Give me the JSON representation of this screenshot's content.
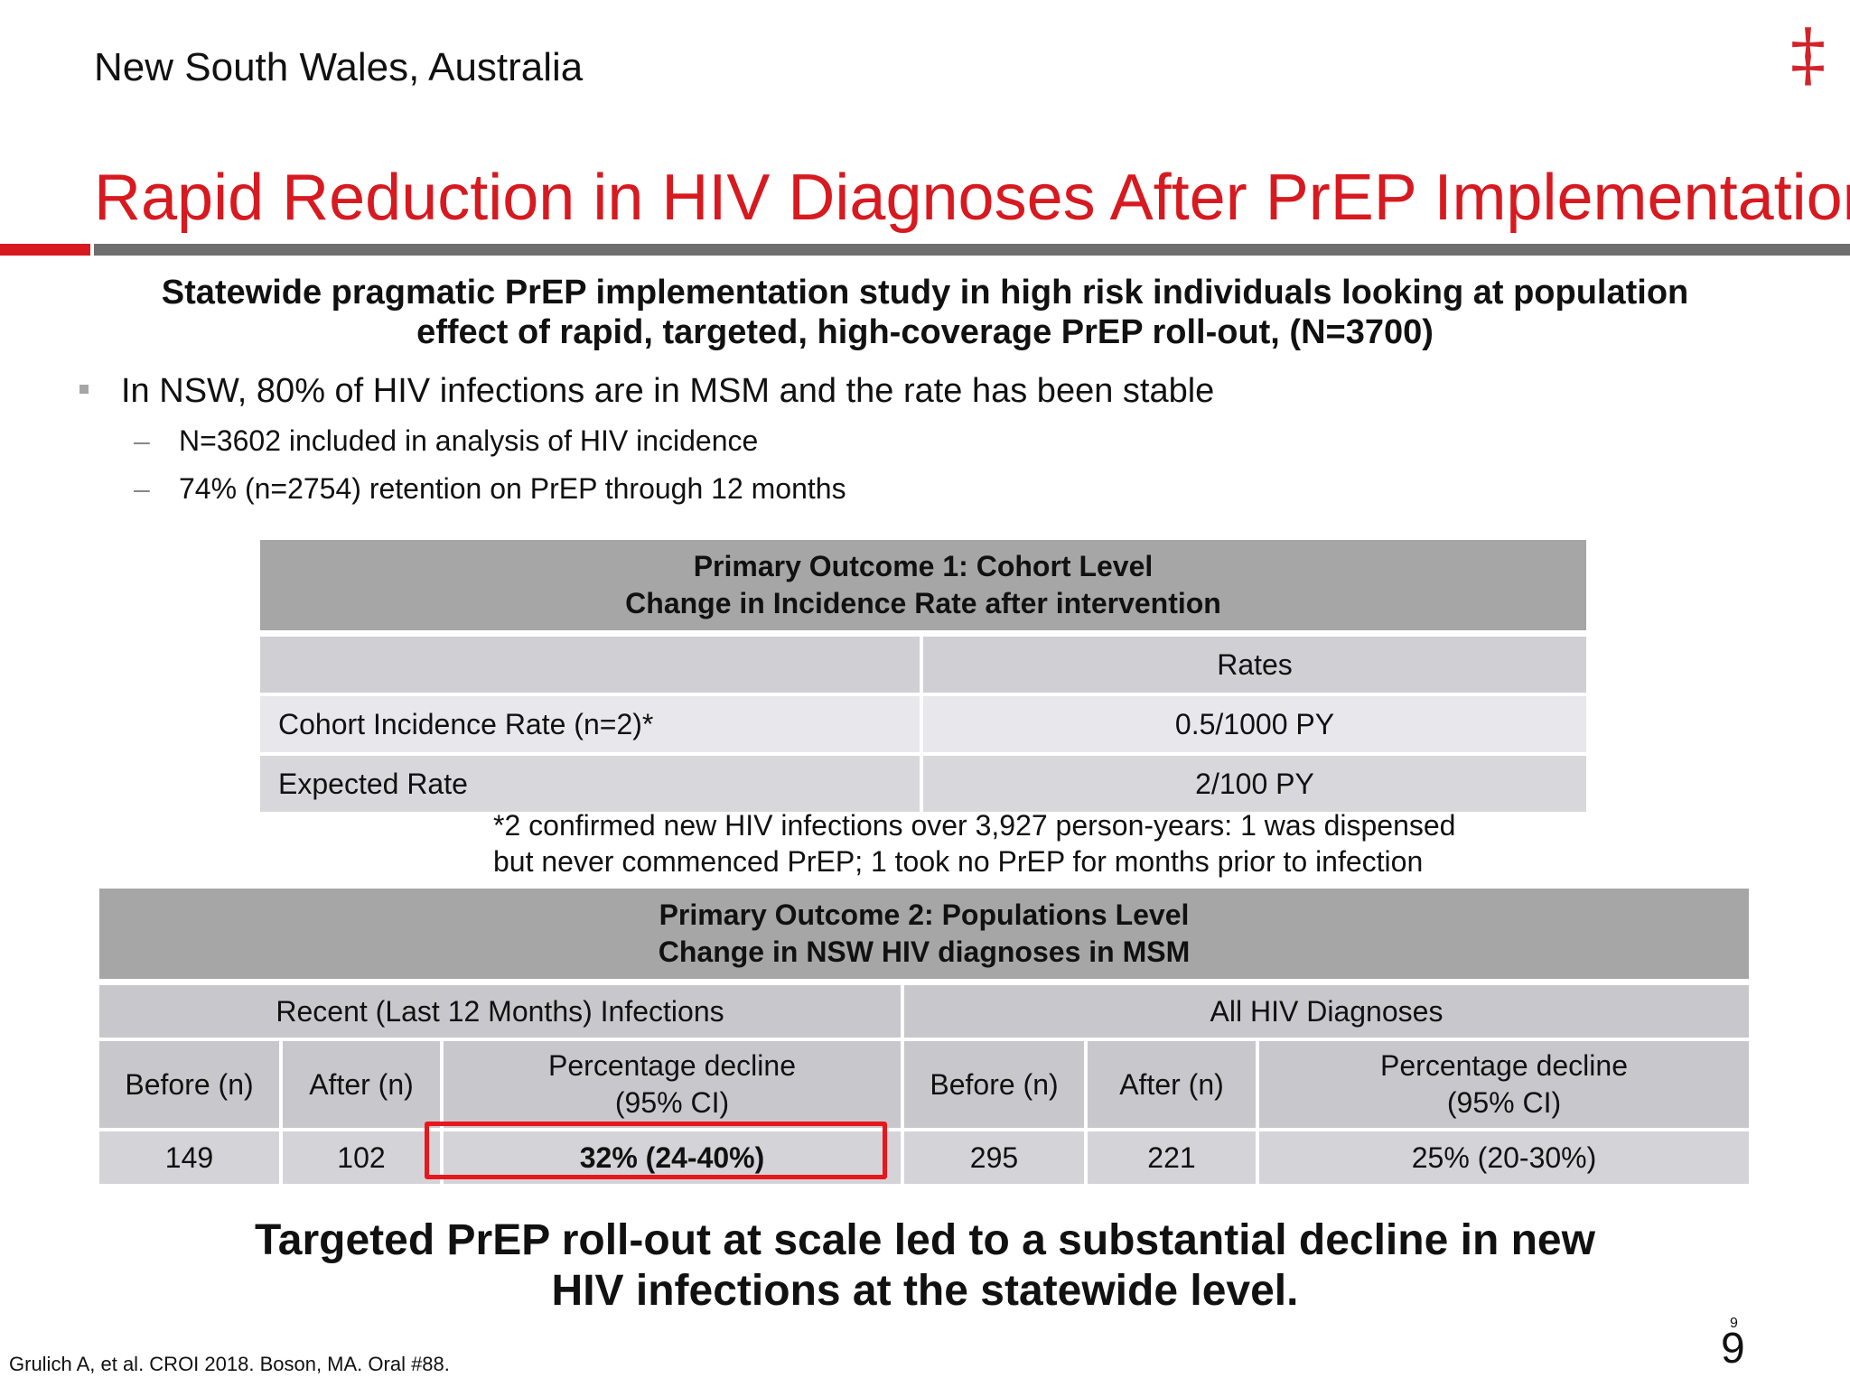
{
  "region_1": {
    "text": "New South Wales, Australia"
  },
  "region_2": {
    "glyph": "‡",
    "icon": "double-dagger-logo"
  },
  "region_3": {
    "title": "Rapid Reduction in HIV Diagnoses After PrEP Implementation"
  },
  "region_4": {
    "accent_color": "#d71920",
    "rule_color": "#6e6e6e"
  },
  "region_5": {
    "line1": "Statewide pragmatic PrEP implementation study in high risk individuals looking at population",
    "line2": "effect of rapid, targeted, high-coverage PrEP roll-out, (N=3700)"
  },
  "region_6": {
    "text": "In NSW, 80% of HIV infections are in MSM and the rate has been stable"
  },
  "region_7": {
    "dash": "–",
    "text": "N=3602 included in analysis of HIV incidence"
  },
  "region_8": {
    "dash": "–",
    "text": "74% (n=2754) retention on PrEP through 12 months"
  },
  "region_9": {
    "header_line1": "Primary Outcome 1: Cohort Level",
    "header_line2": "Change in Incidence Rate after intervention",
    "col_header": "Rates",
    "rows": [
      {
        "label": "Cohort Incidence Rate (n=2)*",
        "value": "0.5/1000 PY"
      },
      {
        "label": "Expected Rate",
        "value": "2/100 PY"
      }
    ]
  },
  "region_10": {
    "line1": "*2 confirmed new HIV infections over 3,927 person-years: 1 was dispensed",
    "line2": "but never commenced PrEP; 1 took no PrEP for months prior to infection"
  },
  "region_11": {
    "header_line1": "Primary Outcome 2: Populations Level",
    "header_line2": "Change in NSW HIV diagnoses in MSM",
    "group1": "Recent (Last 12 Months) Infections",
    "group2": "All HIV Diagnoses",
    "before": "Before (n)",
    "after": "After (n)",
    "decline_line1": "Percentage decline",
    "decline_line2": "(95% CI)",
    "values": {
      "recent_before": "149",
      "recent_after": "102",
      "recent_decline": "32% (24-40%)",
      "all_before": "295",
      "all_after": "221",
      "all_decline": "25% (20-30%)"
    }
  },
  "region_12": {
    "highlight_color": "#e8161d"
  },
  "region_13": {
    "line1": "Targeted PrEP roll-out at scale led to a substantial decline in new",
    "line2": "HIV infections at the statewide level."
  },
  "region_14": {
    "text": "Grulich A, et al. CROI 2018. Boson, MA. Oral #88."
  },
  "region_15": {
    "page_number": "9",
    "tiny_number": "9"
  }
}
